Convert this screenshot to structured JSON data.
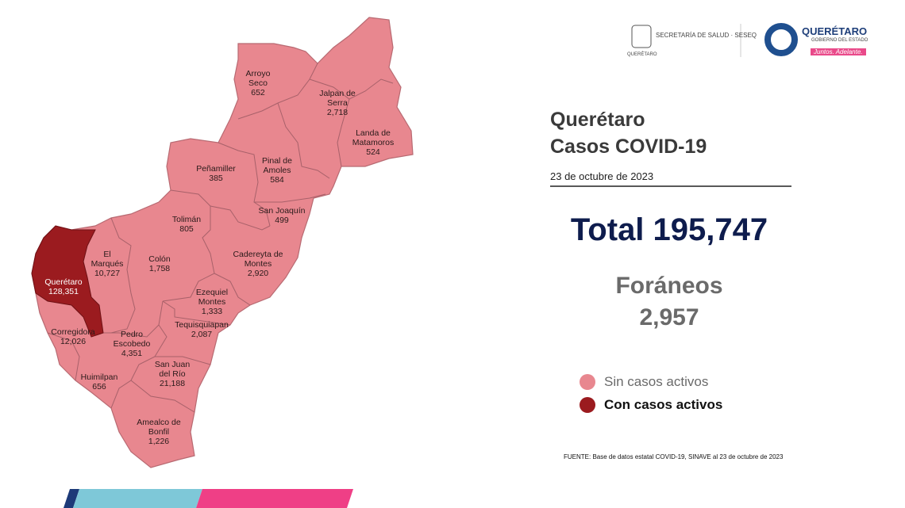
{
  "header": {
    "secretaria": "SECRETARÍA DE SALUD · SESEQ",
    "secretaria_state": "QUERÉTARO",
    "brand": "QUERÉTARO",
    "brand_sub": "GOBIERNO DEL ESTADO",
    "slogan": "Juntos. Adelante."
  },
  "title": "Querétaro",
  "subtitle": "Casos COVID-19",
  "date": "23 de octubre de 2023",
  "total": {
    "label": "Total",
    "value": "195,747"
  },
  "foraneos": {
    "label": "Foráneos",
    "value": "2,957"
  },
  "legend": [
    {
      "label": "Sin casos activos",
      "color": "#e8878f"
    },
    {
      "label": "Con casos activos",
      "color": "#9b1b1f"
    }
  ],
  "source": "FUENTE: Base de datos estatal COVID-19, SINAVE al 23 de octubre de 2023",
  "municipalities": [
    {
      "name": "Arroyo Seco",
      "cases": "652",
      "active": false
    },
    {
      "name": "Jalpan de Serra",
      "cases": "2,718",
      "active": false
    },
    {
      "name": "Landa de Matamoros",
      "cases": "524",
      "active": false
    },
    {
      "name": "Peñamiller",
      "cases": "385",
      "active": false
    },
    {
      "name": "Pinal de Amoles",
      "cases": "584",
      "active": false
    },
    {
      "name": "San Joaquín",
      "cases": "499",
      "active": false
    },
    {
      "name": "Tolimán",
      "cases": "805",
      "active": false
    },
    {
      "name": "El Marqués",
      "cases": "10,727",
      "active": false
    },
    {
      "name": "Colón",
      "cases": "1,758",
      "active": false
    },
    {
      "name": "Cadereyta de Montes",
      "cases": "2,920",
      "active": false
    },
    {
      "name": "Querétaro",
      "cases": "128,351",
      "active": true
    },
    {
      "name": "Ezequiel Montes",
      "cases": "1,333",
      "active": false
    },
    {
      "name": "Tequisquiapan",
      "cases": "2,087",
      "active": false
    },
    {
      "name": "Corregidora",
      "cases": "12,026",
      "active": false
    },
    {
      "name": "Pedro Escobedo",
      "cases": "4,351",
      "active": false
    },
    {
      "name": "San Juan del Río",
      "cases": "21,188",
      "active": false
    },
    {
      "name": "Huimilpan",
      "cases": "656",
      "active": false
    },
    {
      "name": "Amealco de Bonfil",
      "cases": "1,226",
      "active": false
    }
  ]
}
